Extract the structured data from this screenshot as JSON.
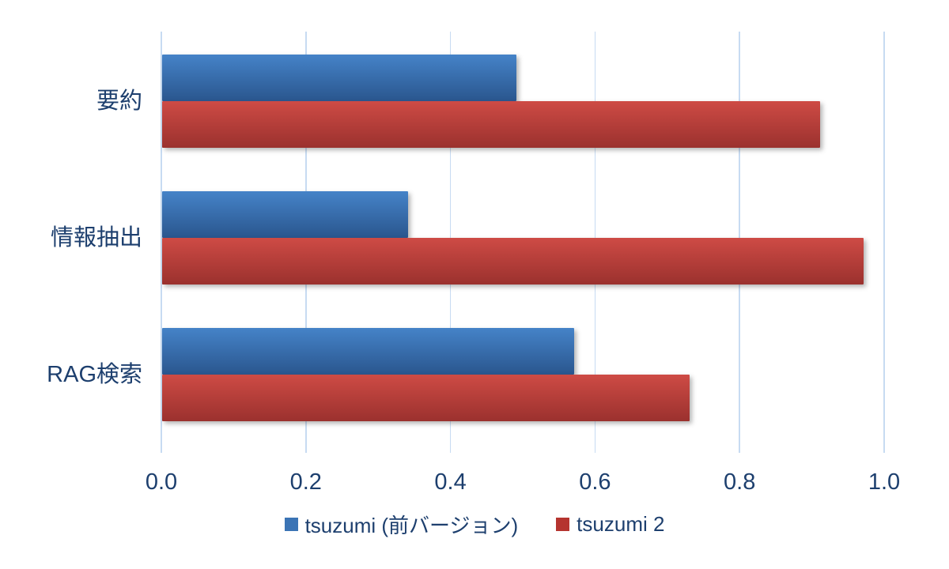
{
  "chart_data": {
    "type": "bar",
    "orientation": "horizontal",
    "title": "",
    "xlabel": "",
    "ylabel": "",
    "categories": [
      "要約",
      "情報抽出",
      "RAG検索"
    ],
    "series": [
      {
        "name": "tsuzumi (前バージョン)",
        "values": [
          0.49,
          0.34,
          0.57
        ],
        "color_top": "#4583c8",
        "color_bottom": "#2a568e",
        "legend_color": "#3b74b5"
      },
      {
        "name": "tsuzumi 2",
        "values": [
          0.91,
          0.97,
          0.73
        ],
        "color_top": "#ce4b45",
        "color_bottom": "#9b312e",
        "legend_color": "#b5342f"
      }
    ],
    "xlim": [
      0,
      1.0
    ],
    "xticks": [
      0.0,
      0.2,
      0.4,
      0.6,
      0.8,
      1.0
    ],
    "xtick_labels": [
      "0.0",
      "0.2",
      "0.4",
      "0.6",
      "0.8",
      "1.0"
    ],
    "grid": true,
    "gridline_color": "#c7dbf2",
    "text_color": "#1d3f6e",
    "legend_position": "bottom",
    "background_color": "#ffffff"
  }
}
